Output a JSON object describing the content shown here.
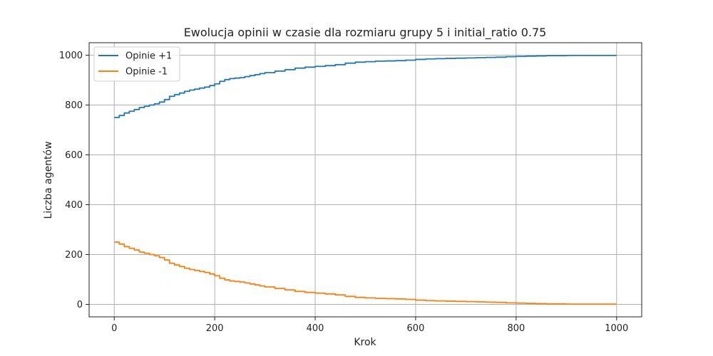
{
  "chart_data": {
    "type": "line",
    "title": "Ewolucja opinii w czasie dla rozmiaru grupy 5 i initial_ratio 0.75",
    "xlabel": "Krok",
    "ylabel": "Liczba agentów",
    "xlim": [
      -50,
      1050
    ],
    "ylim": [
      -50,
      1050
    ],
    "xticks": [
      0,
      200,
      400,
      600,
      800,
      1000
    ],
    "yticks": [
      0,
      200,
      400,
      600,
      800,
      1000
    ],
    "grid": true,
    "legend_position": "top-left",
    "series": [
      {
        "name": "Opinie +1",
        "color": "#1f77b4",
        "x": [
          0,
          10,
          20,
          30,
          40,
          50,
          60,
          70,
          80,
          90,
          100,
          110,
          120,
          130,
          140,
          150,
          160,
          170,
          180,
          190,
          200,
          210,
          220,
          230,
          240,
          250,
          260,
          270,
          280,
          290,
          300,
          320,
          340,
          360,
          380,
          400,
          420,
          440,
          460,
          480,
          500,
          520,
          540,
          560,
          580,
          600,
          620,
          640,
          660,
          680,
          700,
          720,
          740,
          760,
          780,
          800,
          820,
          840,
          860,
          880,
          900,
          950,
          1000
        ],
        "y": [
          750,
          758,
          768,
          775,
          782,
          790,
          795,
          800,
          805,
          812,
          822,
          835,
          842,
          848,
          855,
          860,
          864,
          868,
          872,
          878,
          885,
          895,
          902,
          906,
          908,
          910,
          914,
          918,
          922,
          926,
          930,
          936,
          942,
          948,
          952,
          955,
          958,
          962,
          968,
          972,
          974,
          976,
          977,
          978,
          980,
          983,
          985,
          986,
          987,
          988,
          989,
          990,
          991,
          992,
          994,
          995,
          996,
          997,
          998,
          998,
          999,
          999,
          999
        ]
      },
      {
        "name": "Opinie -1",
        "color": "#ff7f0e",
        "x": [
          0,
          10,
          20,
          30,
          40,
          50,
          60,
          70,
          80,
          90,
          100,
          110,
          120,
          130,
          140,
          150,
          160,
          170,
          180,
          190,
          200,
          210,
          220,
          230,
          240,
          250,
          260,
          270,
          280,
          290,
          300,
          320,
          340,
          360,
          380,
          400,
          420,
          440,
          460,
          480,
          500,
          520,
          540,
          560,
          580,
          600,
          620,
          640,
          660,
          680,
          700,
          720,
          740,
          760,
          780,
          800,
          820,
          840,
          860,
          880,
          900,
          950,
          1000
        ],
        "y": [
          250,
          242,
          232,
          225,
          218,
          210,
          205,
          200,
          195,
          188,
          178,
          165,
          158,
          152,
          145,
          140,
          136,
          132,
          128,
          122,
          115,
          105,
          98,
          94,
          92,
          90,
          86,
          82,
          78,
          74,
          70,
          64,
          58,
          52,
          48,
          45,
          42,
          38,
          32,
          28,
          26,
          24,
          23,
          22,
          20,
          17,
          15,
          14,
          13,
          12,
          11,
          10,
          9,
          8,
          6,
          5,
          4,
          3,
          2,
          2,
          1,
          1,
          1
        ]
      }
    ]
  }
}
